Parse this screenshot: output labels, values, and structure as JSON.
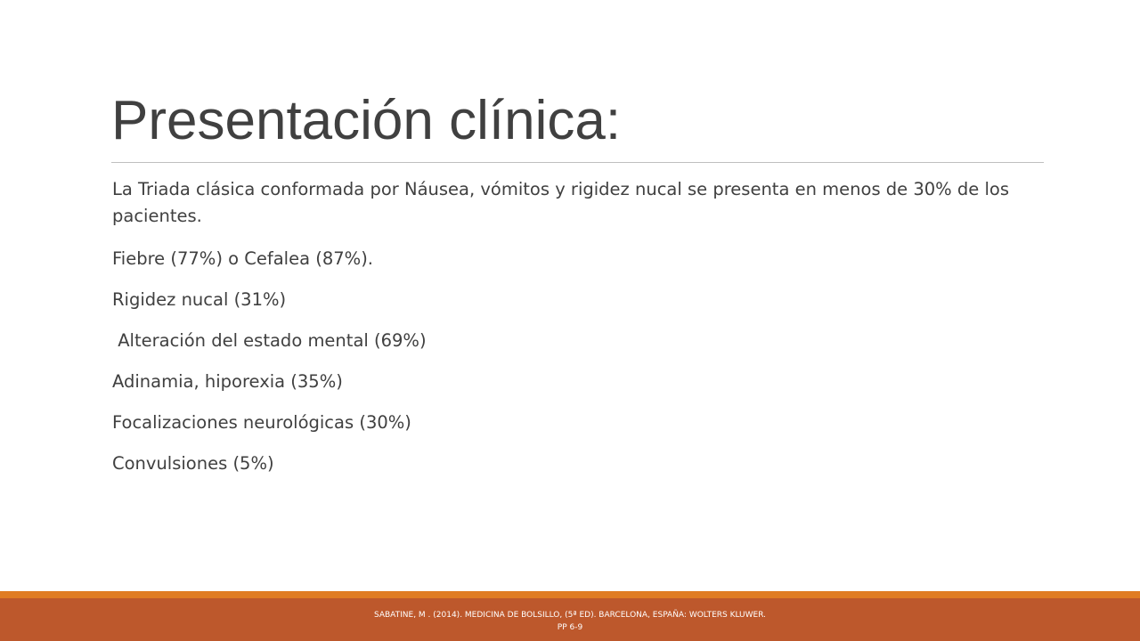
{
  "slide": {
    "title": "Presentación clínica:",
    "paragraphs": [
      "La Triada clásica conformada por Náusea, vómitos y rigidez nucal se presenta en menos de 30% de los pacientes.",
      "Fiebre (77%) o Cefalea (87%).",
      "Rigidez nucal (31%)",
      " Alteración del estado mental (69%)",
      "Adinamia, hiporexia (35%)",
      "Focalizaciones neurológicas (30%)",
      "Convulsiones (5%)"
    ],
    "footer": {
      "line1": "SABATINE, M . (2014). MEDICINA DE BOLSILLO, (5ª ED). BARCELONA, ESPAÑA: WOLTERS KLUWER.",
      "line2": "PP 6-9"
    }
  },
  "colors": {
    "title_text": "#404040",
    "body_text": "#404040",
    "footer_stripe": "#e07c23",
    "footer_band": "#bd582c",
    "footer_text": "#ffffff"
  }
}
